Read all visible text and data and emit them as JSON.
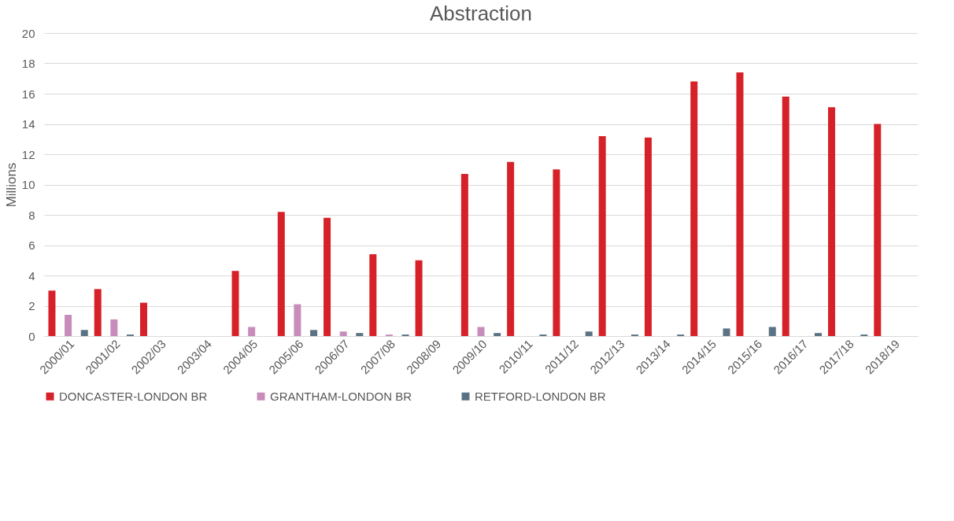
{
  "chart_data": {
    "type": "bar",
    "title": "Abstraction",
    "ylabel": "Millions",
    "categories": [
      "2000/01",
      "2001/02",
      "2002/03",
      "2003/04",
      "2004/05",
      "2005/06",
      "2006/07",
      "2007/08",
      "2008/09",
      "2009/10",
      "2010/11",
      "2011/12",
      "2012/13",
      "2013/14",
      "2014/15",
      "2015/16",
      "2016/17",
      "2017/18",
      "2018/19"
    ],
    "series": [
      {
        "name": "DONCASTER-LONDON BR",
        "color": "#d62128",
        "values": [
          3.0,
          3.1,
          2.2,
          0,
          4.3,
          8.2,
          7.8,
          5.4,
          5.0,
          10.7,
          11.5,
          11.0,
          13.2,
          13.1,
          16.8,
          17.4,
          15.8,
          15.1,
          14.0
        ]
      },
      {
        "name": "GRANTHAM-LONDON BR",
        "color": "#c88cbb",
        "values": [
          1.4,
          1.1,
          0,
          0,
          0.6,
          2.1,
          0.3,
          0.1,
          0,
          0.6,
          0,
          0,
          0,
          0,
          0,
          0,
          0,
          0,
          0
        ]
      },
      {
        "name": "RETFORD-LONDON BR",
        "color": "#5a7283",
        "values": [
          0.4,
          0.1,
          0,
          0,
          0,
          0.4,
          0.2,
          0.1,
          0,
          0.2,
          0.1,
          0.3,
          0.1,
          0.1,
          0.5,
          0.6,
          0.2,
          0.1,
          0
        ]
      }
    ],
    "ylim": [
      0,
      20
    ],
    "yticks": [
      0,
      2,
      4,
      6,
      8,
      10,
      12,
      14,
      16,
      18,
      20
    ],
    "grid": "y",
    "legend": "bottom"
  }
}
